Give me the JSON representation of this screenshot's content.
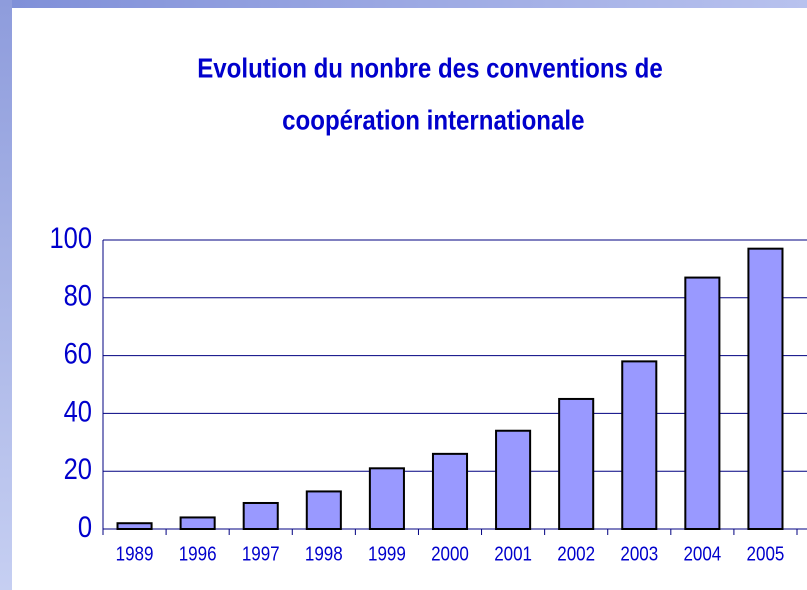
{
  "chart_data": {
    "type": "bar",
    "title": "Evolution du nonbre des conventions de coopération internationale",
    "categories": [
      "1989",
      "1996",
      "1997",
      "1998",
      "1999",
      "2000",
      "2001",
      "2002",
      "2003",
      "2004",
      "2005"
    ],
    "values": [
      2,
      4,
      9,
      13,
      21,
      26,
      34,
      45,
      58,
      87,
      97
    ],
    "color": "#9999ff",
    "ylim": [
      0,
      100
    ],
    "yticks": [
      0,
      20,
      40,
      60,
      80,
      100
    ],
    "grid": true
  }
}
